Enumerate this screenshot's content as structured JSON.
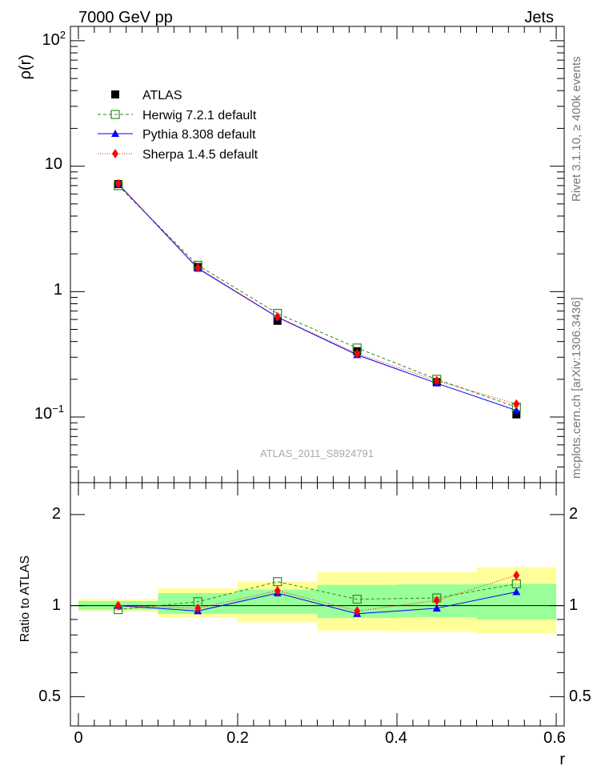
{
  "header": {
    "left": "7000 GeV pp",
    "right": "Jets"
  },
  "side_labels": {
    "rivet": "Rivet 3.1.10, ≥ 400k events",
    "mcplots": "mcplots.cern.ch [arXiv:1306.3436]"
  },
  "watermark": "ATLAS_2011_S8924791",
  "chart_data": [
    {
      "type": "line",
      "panel": "main",
      "ylabel": "ρ(r)",
      "xlabel": "",
      "yscale": "log",
      "ylim": [
        0.03,
        130
      ],
      "xlim": [
        -0.01,
        0.61
      ],
      "ytick_labels": [
        "10−1",
        "1",
        "10",
        "102"
      ],
      "x": [
        0.05,
        0.15,
        0.25,
        0.35,
        0.45,
        0.55
      ],
      "legend_position": "top-left",
      "series": [
        {
          "name": "ATLAS",
          "marker": "square-filled",
          "color": "#000000",
          "values": [
            7.2,
            1.57,
            0.585,
            0.335,
            0.19,
            0.105
          ]
        },
        {
          "name": "Herwig 7.2.1 default",
          "marker": "square-open",
          "color": "#2e8b1e",
          "line": "dashed",
          "values": [
            7.0,
            1.62,
            0.67,
            0.355,
            0.2,
            0.12
          ]
        },
        {
          "name": "Pythia 8.308 default",
          "marker": "triangle",
          "color": "#0000ff",
          "line": "solid",
          "values": [
            7.22,
            1.53,
            0.625,
            0.313,
            0.186,
            0.113
          ]
        },
        {
          "name": "Sherpa 1.4.5 default",
          "marker": "diamond",
          "color": "#ff0000",
          "line": "dotted",
          "values": [
            7.25,
            1.55,
            0.63,
            0.32,
            0.195,
            0.127
          ]
        }
      ]
    },
    {
      "type": "line",
      "panel": "ratio",
      "ylabel": "Ratio to ATLAS",
      "xlabel": "r",
      "yscale": "log",
      "ylim": [
        0.4,
        2.55
      ],
      "xlim": [
        -0.01,
        0.61
      ],
      "ytick_labels": [
        "0.5",
        "1",
        "2"
      ],
      "xtick_labels": [
        "0",
        "0.2",
        "0.4",
        "0.6"
      ],
      "x": [
        0.05,
        0.15,
        0.25,
        0.35,
        0.45,
        0.55
      ],
      "bands": {
        "edges": [
          0.0,
          0.1,
          0.2,
          0.3,
          0.4,
          0.5,
          0.6
        ],
        "inner": [
          [
            0.97,
            1.035
          ],
          [
            0.94,
            1.1
          ],
          [
            0.94,
            1.13
          ],
          [
            0.91,
            1.17
          ],
          [
            0.915,
            1.175
          ],
          [
            0.9,
            1.18
          ]
        ],
        "outer": [
          [
            0.96,
            1.05
          ],
          [
            0.915,
            1.14
          ],
          [
            0.88,
            1.2
          ],
          [
            0.825,
            1.29
          ],
          [
            0.82,
            1.29
          ],
          [
            0.81,
            1.34
          ]
        ]
      },
      "series": [
        {
          "name": "Herwig 7.2.1 default",
          "values": [
            0.97,
            1.03,
            1.2,
            1.05,
            1.06,
            1.18
          ]
        },
        {
          "name": "Pythia 8.308 default",
          "values": [
            1.0,
            0.96,
            1.1,
            0.94,
            0.98,
            1.11
          ]
        },
        {
          "name": "Sherpa 1.4.5 default",
          "values": [
            1.0,
            0.98,
            1.12,
            0.96,
            1.04,
            1.26
          ]
        }
      ]
    }
  ]
}
